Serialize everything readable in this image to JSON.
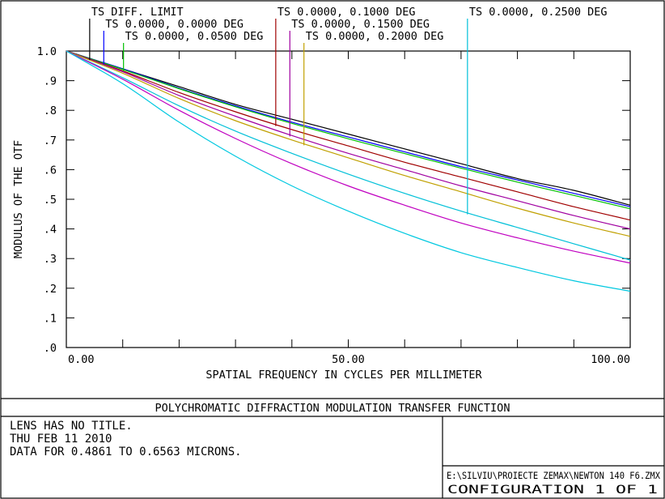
{
  "page_title": "POLYCHROMATIC DIFFRACTION MODULATION TRANSFER FUNCTION",
  "info_lines": [
    "LENS HAS NO TITLE.",
    "THU FEB 11 2010",
    "DATA FOR 0.4861 TO 0.6563 MICRONS."
  ],
  "file_path": "E:\\SILVIU\\PROIECTE ZEMAX\\NEWTON 140 F6.ZMX",
  "configuration": "CONFIGURATION 1 OF 1",
  "chart_data": {
    "type": "line",
    "xlabel": "SPATIAL FREQUENCY IN CYCLES PER MILLIMETER",
    "ylabel": "MODULUS OF THE OTF",
    "xlim": [
      0,
      100
    ],
    "ylim": [
      0,
      1
    ],
    "x_ticks": [
      0,
      50,
      100
    ],
    "x_tick_labels": [
      "0.00",
      "50.00",
      "100.00"
    ],
    "y_ticks": [
      0,
      0.1,
      0.2,
      0.3,
      0.4,
      0.5,
      0.6,
      0.7,
      0.8,
      0.9,
      1.0
    ],
    "y_tick_labels": [
      ".0",
      ".1",
      ".2",
      ".3",
      ".4",
      ".5",
      ".6",
      ".7",
      ".8",
      ".9",
      "1.0"
    ],
    "x": [
      0,
      10,
      20,
      30,
      40,
      50,
      60,
      70,
      80,
      90,
      100
    ],
    "series": [
      {
        "name": "TS DIFF. LIMIT",
        "color": "#000000",
        "label_x": 5,
        "values": [
          1.0,
          0.94,
          0.88,
          0.82,
          0.77,
          0.72,
          0.67,
          0.62,
          0.57,
          0.53,
          0.48
        ]
      },
      {
        "name": "TS 0.0000, 0.0000 DEG",
        "color": "#0000ff",
        "label_x": 7.5,
        "values": [
          1.0,
          0.94,
          0.875,
          0.815,
          0.76,
          0.71,
          0.66,
          0.61,
          0.565,
          0.52,
          0.475
        ]
      },
      {
        "name": "TS 0.0000, 0.0500 DEG",
        "color": "#00c000",
        "label_x": 11,
        "values": [
          1.0,
          0.938,
          0.873,
          0.812,
          0.756,
          0.704,
          0.654,
          0.605,
          0.558,
          0.513,
          0.468
        ]
      },
      {
        "name": "TS 0.0000, 0.1000 DEG",
        "color": "#a00000",
        "label_x": 38,
        "values": [
          1.0,
          0.933,
          0.86,
          0.795,
          0.735,
          0.68,
          0.625,
          0.575,
          0.525,
          0.475,
          0.43
        ]
      },
      {
        "name": "TS 0.0000, 0.1500 DEG",
        "color": "#a000a0",
        "label_x": 40.5,
        "values": [
          1.0,
          0.93,
          0.85,
          0.78,
          0.715,
          0.655,
          0.6,
          0.545,
          0.495,
          0.445,
          0.4
        ]
      },
      {
        "name": "TS 0.0000, 0.2000 DEG",
        "color": "#c0a000",
        "label_x": 43,
        "values": [
          1.0,
          0.925,
          0.84,
          0.765,
          0.7,
          0.64,
          0.58,
          0.525,
          0.47,
          0.42,
          0.375
        ]
      },
      {
        "name": "TS 0.0000, 0.2500 DEG",
        "color": "#00c0d8",
        "label_x": 72,
        "values": [
          1.0,
          0.91,
          0.815,
          0.73,
          0.655,
          0.585,
          0.52,
          0.46,
          0.405,
          0.35,
          0.295
        ]
      },
      {
        "name": "",
        "color": "#c000c0",
        "label_x": 0,
        "values": [
          1.0,
          0.905,
          0.8,
          0.705,
          0.62,
          0.545,
          0.48,
          0.42,
          0.37,
          0.325,
          0.285
        ]
      },
      {
        "name": "",
        "color": "#00c8e0",
        "label_x": 0,
        "values": [
          1.0,
          0.89,
          0.76,
          0.645,
          0.545,
          0.46,
          0.385,
          0.32,
          0.27,
          0.225,
          0.19
        ]
      }
    ]
  }
}
